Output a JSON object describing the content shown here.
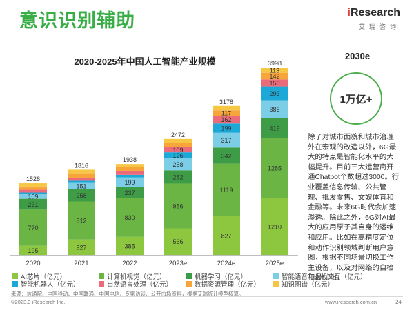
{
  "header": {
    "title": "意识识别辅助",
    "logo_text_i": "i",
    "logo_text_rest": "Research",
    "logo_sub": "艾瑞咨询"
  },
  "side": {
    "title": "2030e",
    "highlight": "1万亿+",
    "description": "除了对城市面貌和城市治理外在宏观的改造以外，6G最大的特点是智能化水平的大幅提升。目前三大运营商开通Chatbot个数超过3000。行业覆盖信息传输、公共管理、批发零售、文娱体育和金融等。未来6G时代会加速渗透。除此之外，6G对AI最大的应用原子其自身的运维和应用。比如在高精度定位和动作识别领域判断用户意图，根据不同场景切换工作主设备，以及对网络的自检和最优化。"
  },
  "chart_data": {
    "type": "bar",
    "stacked": true,
    "title": "2020-2025年中国人工智能产业规模",
    "categories": [
      "2020",
      "2021",
      "2022",
      "2023e",
      "2024e",
      "2025e"
    ],
    "series": [
      {
        "name": "AI芯片（亿元）",
        "color": "#8dc63f",
        "values": [
          195,
          327,
          385,
          566,
          827,
          1210
        ]
      },
      {
        "name": "计算机视觉（亿元）",
        "color": "#6bb544",
        "values": [
          770,
          812,
          830,
          956,
          1119,
          1285
        ]
      },
      {
        "name": "机器学习（亿元）",
        "color": "#3e9c46",
        "values": [
          231,
          258,
          237,
          282,
          342,
          419
        ]
      },
      {
        "name": "智能语音与人机交互（亿元）",
        "color": "#7ccde6",
        "values": [
          109,
          151,
          199,
          258,
          317,
          386
        ]
      },
      {
        "name": "智能机器人（亿元）",
        "color": "#1da9d8",
        "values": [
          25,
          33,
          56,
          126,
          199,
          293
        ]
      },
      {
        "name": "自然语言处理（亿元）",
        "color": "#ec6b7b",
        "values": [
          58,
          62,
          87,
          109,
          162,
          150
        ]
      },
      {
        "name": "数据资源管理（亿元）",
        "color": "#f7a43b",
        "values": [
          70,
          97,
          76,
          93,
          117,
          142
        ]
      },
      {
        "name": "知识图谱（亿元）",
        "color": "#f6c744",
        "values": [
          70,
          76,
          68,
          82,
          95,
          113
        ]
      }
    ],
    "legend_position": "bottom",
    "grid": false
  },
  "footer": {
    "source": "来源：信通院、中国移动、中国联通、中国电信、专家访谈、公开市场资料，根据艾瑞统计模型核算。",
    "copyright": "©2023.3 iResearch Inc.",
    "website": "www.iresearch.com.cn",
    "page": "24"
  }
}
